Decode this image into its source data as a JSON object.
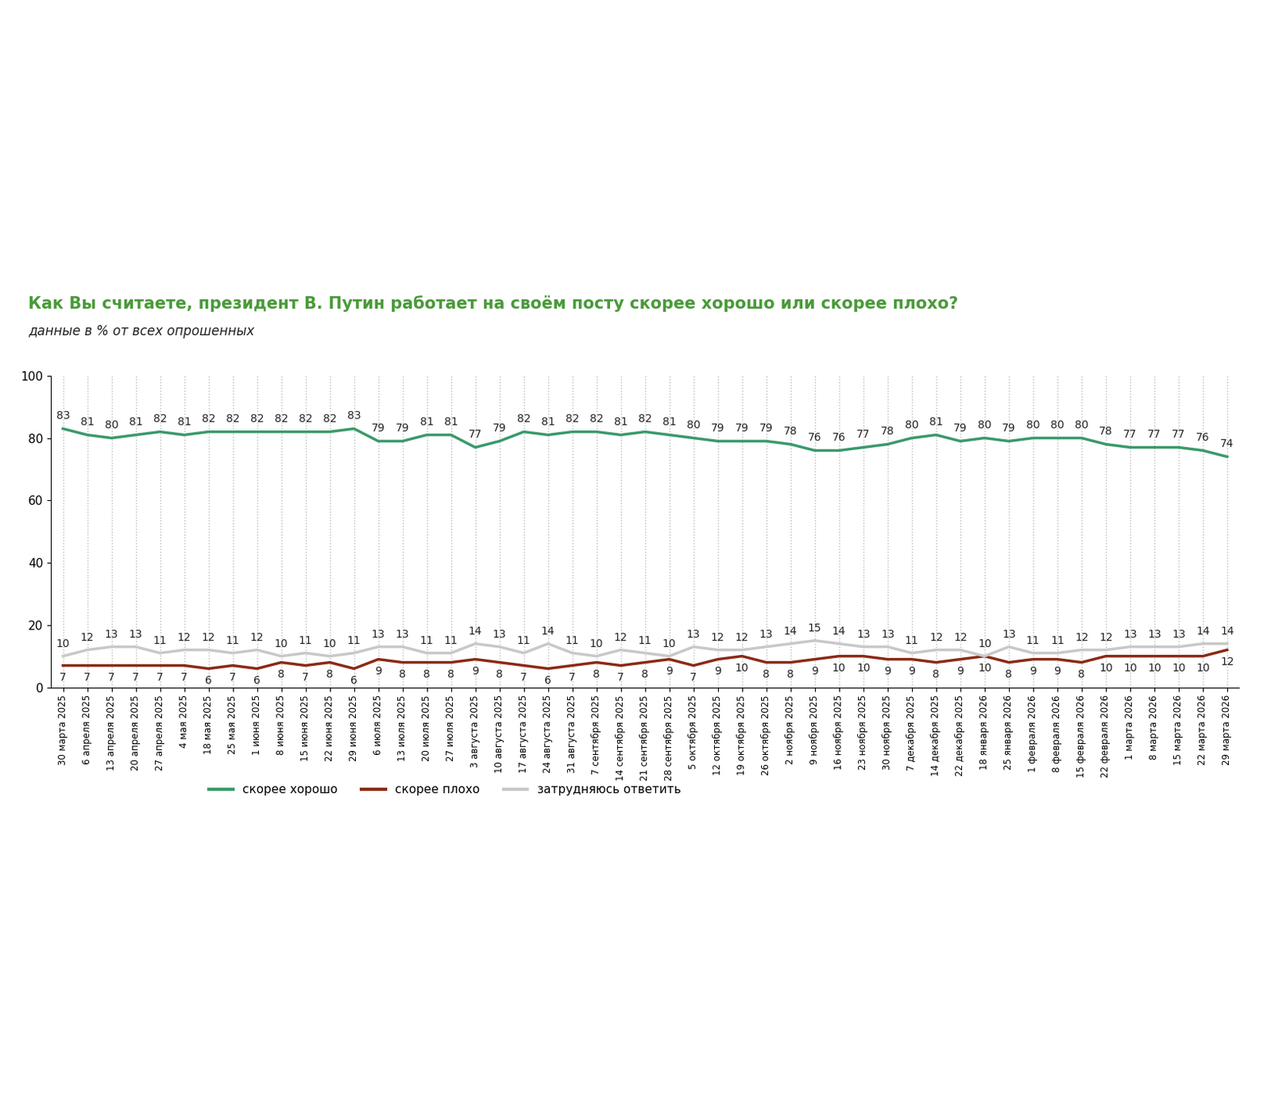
{
  "chart_data": {
    "type": "line",
    "title": "Как Вы считаете, президент В. Путин работает на своём посту скорее хорошо или скорее плохо?",
    "subtitle": "данные в % от всех опрошенных",
    "categories": [
      "30 марта 2025",
      "6 апреля 2025",
      "13 апреля 2025",
      "20 апреля 2025",
      "27 апреля 2025",
      "4 мая 2025",
      "18 мая 2025",
      "25 мая 2025",
      "1 июня 2025",
      "8 июня 2025",
      "15 июня 2025",
      "22 июня 2025",
      "29 июня 2025",
      "6 июля 2025",
      "13 июля 2025",
      "20 июля 2025",
      "27 июля 2025",
      "3 августа 2025",
      "10 августа 2025",
      "17 августа 2025",
      "24 августа 2025",
      "31 августа 2025",
      "7 сентября 2025",
      "14 сентября 2025",
      "21 сентября 2025",
      "28 сентября 2025",
      "5 октября 2025",
      "12 октября 2025",
      "19 октября 2025",
      "26 октября 2025",
      "2 ноября 2025",
      "9 ноября 2025",
      "16 ноября 2025",
      "23 ноября 2025",
      "30 ноября 2025",
      "7 декабря 2025",
      "14 декабря 2025",
      "22 декабря 2025",
      "18 января 2026",
      "25 января 2026",
      "1 февраля 2026",
      "8 февраля 2026",
      "15 февраля 2026",
      "22 февраля 2026",
      "1 марта 2026",
      "8 марта 2026",
      "15 марта 2026",
      "22 марта 2026",
      "29 марта 2026"
    ],
    "series": [
      {
        "name": "скорее хорошо",
        "color": "#3a9a6a",
        "values": [
          83,
          81,
          80,
          81,
          82,
          81,
          82,
          82,
          82,
          82,
          82,
          82,
          83,
          79,
          79,
          81,
          81,
          77,
          79,
          82,
          81,
          82,
          82,
          81,
          82,
          81,
          80,
          79,
          79,
          79,
          78,
          76,
          76,
          77,
          78,
          80,
          81,
          79,
          80,
          79,
          80,
          80,
          80,
          78,
          77,
          77,
          77,
          76,
          74
        ]
      },
      {
        "name": "скорее плохо",
        "color": "#8b2a14",
        "values": [
          7,
          7,
          7,
          7,
          7,
          7,
          6,
          7,
          6,
          8,
          7,
          8,
          6,
          9,
          8,
          8,
          8,
          9,
          8,
          7,
          6,
          7,
          8,
          7,
          8,
          9,
          7,
          9,
          10,
          8,
          8,
          9,
          10,
          10,
          9,
          9,
          8,
          9,
          10,
          8,
          9,
          9,
          8,
          10,
          10,
          10,
          10,
          10,
          12
        ]
      },
      {
        "name": "затрудняюсь ответить",
        "color": "#c8c8c8",
        "values": [
          10,
          12,
          13,
          13,
          11,
          12,
          12,
          11,
          12,
          10,
          11,
          10,
          11,
          13,
          13,
          11,
          11,
          14,
          13,
          11,
          14,
          11,
          10,
          12,
          11,
          10,
          13,
          12,
          12,
          13,
          14,
          15,
          14,
          13,
          13,
          11,
          12,
          12,
          10,
          13,
          11,
          11,
          12,
          12,
          13,
          13,
          13,
          14,
          14
        ]
      }
    ],
    "ylim": [
      0,
      100
    ],
    "yticks": [
      0,
      20,
      40,
      60,
      80,
      100
    ],
    "grid": true,
    "data_labels": true,
    "legend": "lower center"
  }
}
